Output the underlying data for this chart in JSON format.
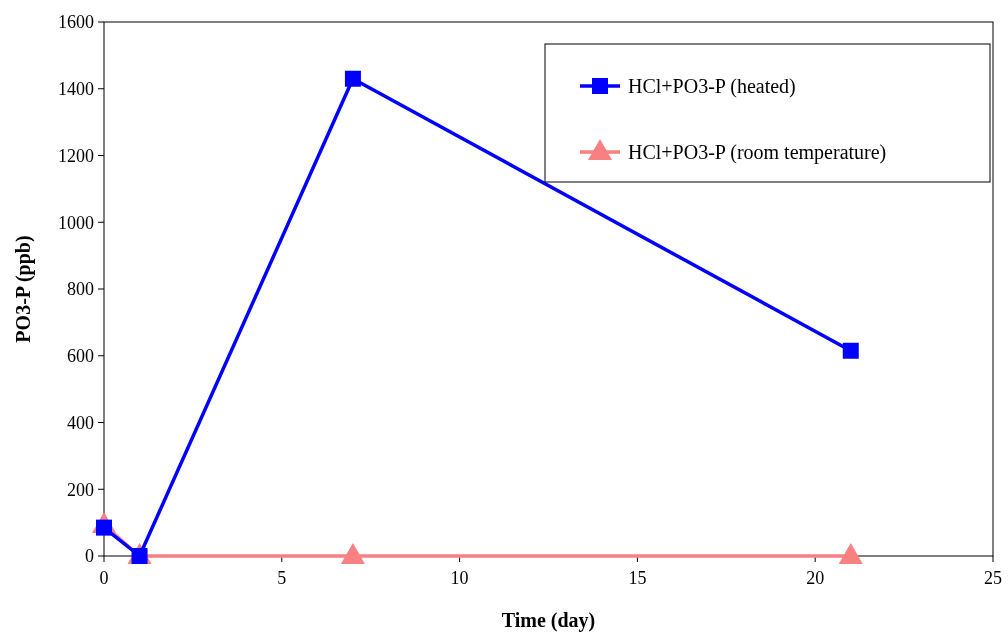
{
  "chart_data": {
    "type": "line",
    "xlabel": "Time (day)",
    "ylabel": "PO3-P (ppb)",
    "x": [
      0,
      1,
      7,
      21
    ],
    "xlim": [
      0,
      25
    ],
    "xticks": [
      0,
      5,
      10,
      15,
      20,
      25
    ],
    "ylim": [
      0,
      1600
    ],
    "yticks": [
      0,
      200,
      400,
      600,
      800,
      1000,
      1200,
      1400,
      1600
    ],
    "grid": false,
    "legend": "top right",
    "line_style": "solid",
    "series": [
      {
        "name": "HCl+PO3-P (heated)",
        "color": "#0000ff",
        "marker": "square",
        "values": [
          85,
          0,
          1430,
          615
        ]
      },
      {
        "name": "HCl+PO3-P (room temperature)",
        "color": "#f88080",
        "marker": "triangle",
        "values": [
          93,
          0,
          0,
          0
        ]
      }
    ]
  }
}
